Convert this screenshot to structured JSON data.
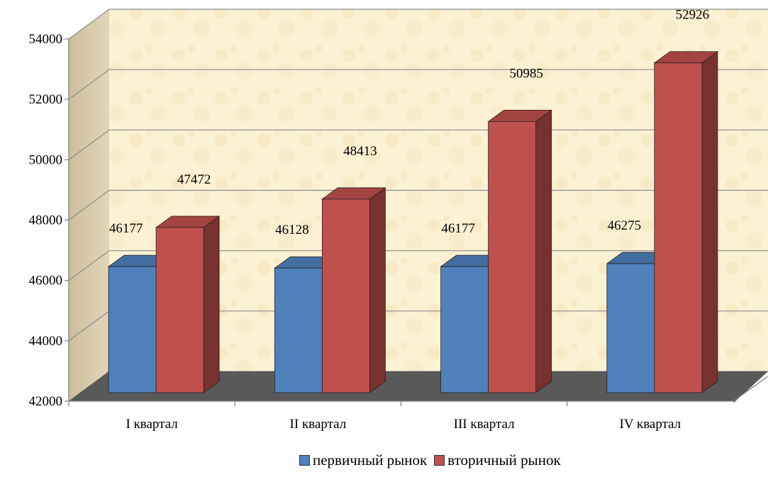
{
  "chart_data": {
    "type": "bar",
    "categories": [
      "I квартал",
      "II квартал",
      "III квартал",
      "IV квартал"
    ],
    "series": [
      {
        "name": "первичный рынок",
        "values": [
          46177,
          46128,
          46177,
          46275
        ],
        "color": "#4F81BD"
      },
      {
        "name": "вторичный рынок",
        "values": [
          47472,
          48413,
          50985,
          52926
        ],
        "color": "#C0504D"
      }
    ],
    "ylim": [
      42000,
      54000
    ],
    "y_ticks": [
      "54000",
      "52000",
      "50000",
      "48000",
      "46000",
      "44000",
      "42000"
    ],
    "grid": true,
    "legend_position": "bottom",
    "style": "3d-clustered-column"
  }
}
